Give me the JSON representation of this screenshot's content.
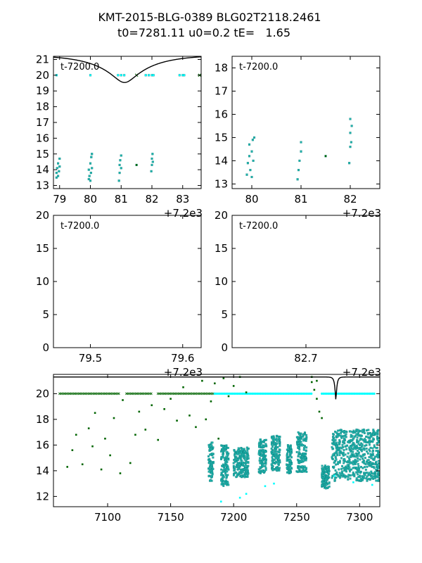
{
  "figure": {
    "title_line1": "KMT-2015-BLG-0389 BLG02T2118.2461",
    "title_line2": "t0=7281.11 u0=0.2 tE=   1.65"
  },
  "colors": {
    "model": "#000000",
    "cyan": "#00ffff",
    "teal": "#20b2aa",
    "green": "#006400"
  },
  "chart_data": [
    {
      "id": "top-left",
      "type": "scatter",
      "annotation": "t-7200.0",
      "offset_label": "+7.2e3",
      "xlim": [
        78.8,
        83.6
      ],
      "ylim": [
        21.2,
        12.8
      ],
      "xticks": [
        79,
        80,
        81,
        82,
        83
      ],
      "yticks": [
        13,
        14,
        15,
        16,
        17,
        18,
        19,
        20,
        21
      ],
      "model": {
        "t0": 81.11,
        "u0": 0.2,
        "tE": 1.65,
        "base_mag": 21.3
      },
      "series": [
        {
          "marker": "dot",
          "color": "teal",
          "points": [
            [
              78.9,
              13.5
            ],
            [
              78.9,
              13.8
            ],
            [
              78.92,
              14.1
            ],
            [
              78.95,
              13.6
            ],
            [
              78.95,
              14.4
            ],
            [
              78.98,
              13.9
            ],
            [
              79.0,
              14.7
            ],
            [
              79.0,
              14.2
            ],
            [
              79.95,
              13.4
            ],
            [
              79.95,
              14.0
            ],
            [
              79.97,
              13.6
            ],
            [
              80.0,
              13.3
            ],
            [
              80.0,
              14.4
            ],
            [
              80.02,
              13.8
            ],
            [
              80.03,
              14.8
            ],
            [
              80.05,
              14.1
            ],
            [
              80.05,
              15.0
            ],
            [
              80.93,
              13.3
            ],
            [
              80.95,
              13.8
            ],
            [
              80.95,
              14.3
            ],
            [
              80.97,
              14.6
            ],
            [
              81.0,
              14.1
            ],
            [
              81.0,
              14.9
            ],
            [
              81.98,
              13.9
            ],
            [
              82.0,
              14.3
            ],
            [
              82.0,
              14.7
            ],
            [
              82.02,
              15.0
            ],
            [
              82.03,
              14.5
            ]
          ]
        },
        {
          "marker": "dot",
          "color": "green",
          "points": [
            [
              81.5,
              14.3
            ]
          ]
        },
        {
          "marker": "dot",
          "color": "cyan",
          "points": [
            [
              78.9,
              20.0
            ],
            [
              80.0,
              20.0
            ],
            [
              80.9,
              20.0
            ],
            [
              81.0,
              20.0
            ],
            [
              81.1,
              20.0
            ],
            [
              81.8,
              20.0
            ],
            [
              81.9,
              20.0
            ],
            [
              82.0,
              20.0
            ],
            [
              82.05,
              20.0
            ],
            [
              82.9,
              20.0
            ],
            [
              83.0,
              20.0
            ],
            [
              83.05,
              20.0
            ]
          ]
        },
        {
          "marker": "x",
          "color": "green",
          "points": [
            [
              81.5,
              20.0
            ],
            [
              83.55,
              20.0
            ]
          ]
        }
      ]
    },
    {
      "id": "top-right",
      "type": "scatter",
      "annotation": "t-7200.0",
      "offset_label": "+7.2e3",
      "xlim": [
        79.6,
        82.6
      ],
      "ylim": [
        18.5,
        12.8
      ],
      "xticks": [
        80,
        81,
        82
      ],
      "yticks": [
        13,
        14,
        15,
        16,
        17,
        18
      ],
      "model": {
        "t0": 81.11,
        "u0": 0.2,
        "tE": 1.65,
        "base_mag": 21.3
      },
      "series": [
        {
          "marker": "dot",
          "color": "teal",
          "points": [
            [
              79.9,
              13.4
            ],
            [
              79.92,
              13.9
            ],
            [
              79.95,
              14.2
            ],
            [
              79.95,
              14.7
            ],
            [
              79.97,
              13.6
            ],
            [
              80.0,
              14.4
            ],
            [
              80.0,
              13.3
            ],
            [
              80.02,
              14.9
            ],
            [
              80.03,
              14.0
            ],
            [
              80.05,
              15.0
            ],
            [
              80.93,
              13.2
            ],
            [
              80.95,
              13.6
            ],
            [
              80.97,
              14.0
            ],
            [
              81.0,
              14.4
            ],
            [
              81.0,
              14.8
            ],
            [
              81.98,
              13.9
            ],
            [
              82.0,
              14.6
            ],
            [
              82.0,
              15.2
            ],
            [
              82.02,
              14.8
            ],
            [
              82.03,
              15.5
            ],
            [
              82.0,
              15.8
            ]
          ]
        },
        {
          "marker": "dot",
          "color": "green",
          "points": [
            [
              81.5,
              14.2
            ]
          ]
        }
      ]
    },
    {
      "id": "middle-left",
      "type": "line",
      "annotation": "t-7200.0",
      "offset_label": "+7.2e3",
      "xlim": [
        79.46,
        79.62
      ],
      "ylim": [
        20,
        0
      ],
      "xticks": [
        79.5,
        79.6
      ],
      "yticks": [
        0,
        5,
        10,
        15,
        20
      ],
      "model": {
        "t0": 81.11,
        "u0": 0.2,
        "tE": 1.65,
        "base_mag": 21.3
      },
      "series": []
    },
    {
      "id": "middle-right",
      "type": "line",
      "annotation": "t-7200.0",
      "offset_label": "+7.2e3",
      "xlim": [
        82.6,
        82.8
      ],
      "ylim": [
        20,
        0
      ],
      "xticks": [
        82.7
      ],
      "yticks": [
        0,
        5,
        10,
        15,
        20
      ],
      "model": {
        "t0": 81.11,
        "u0": 0.2,
        "tE": 1.65,
        "base_mag": 21.3
      },
      "series": []
    },
    {
      "id": "bottom",
      "type": "scatter",
      "annotation": "",
      "offset_label": "",
      "xlim": [
        7057,
        7316
      ],
      "ylim": [
        21.5,
        11.2
      ],
      "xticks": [
        7100,
        7150,
        7200,
        7250,
        7300
      ],
      "yticks": [
        12,
        14,
        16,
        18,
        20
      ],
      "model": {
        "t0": 7281.11,
        "u0": 0.2,
        "tE": 1.65,
        "base_mag": 21.3
      },
      "baseline_bands": [
        {
          "color": "green",
          "marker": "x",
          "y": 20.0,
          "x_from": 7062,
          "x_to": 7110
        },
        {
          "color": "green",
          "marker": "x",
          "y": 20.0,
          "x_from": 7115,
          "x_to": 7135
        },
        {
          "color": "green",
          "marker": "x",
          "y": 20.0,
          "x_from": 7140,
          "x_to": 7185
        },
        {
          "color": "cyan",
          "marker": "dot",
          "y": 20.0,
          "x_from": 7185,
          "x_to": 7262
        },
        {
          "color": "cyan",
          "marker": "dot",
          "y": 20.0,
          "x_from": 7270,
          "x_to": 7312
        }
      ],
      "clusters": [
        {
          "color": "teal",
          "x_from": 7180,
          "x_to": 7184,
          "y_from": 13.2,
          "y_to": 16.2
        },
        {
          "color": "teal",
          "x_from": 7190,
          "x_to": 7196,
          "y_from": 12.8,
          "y_to": 16.0
        },
        {
          "color": "teal",
          "x_from": 7200,
          "x_to": 7212,
          "y_from": 13.5,
          "y_to": 15.8
        },
        {
          "color": "teal",
          "x_from": 7220,
          "x_to": 7226,
          "y_from": 13.8,
          "y_to": 16.5
        },
        {
          "color": "teal",
          "x_from": 7230,
          "x_to": 7237,
          "y_from": 14.0,
          "y_to": 16.8
        },
        {
          "color": "teal",
          "x_from": 7242,
          "x_to": 7246,
          "y_from": 13.8,
          "y_to": 16.0
        },
        {
          "color": "teal",
          "x_from": 7250,
          "x_to": 7258,
          "y_from": 13.9,
          "y_to": 17.0
        },
        {
          "color": "teal",
          "x_from": 7270,
          "x_to": 7276,
          "y_from": 12.6,
          "y_to": 14.4
        },
        {
          "color": "teal",
          "x_from": 7278,
          "x_to": 7316,
          "y_from": 13.2,
          "y_to": 17.2
        }
      ],
      "scatter_points": [
        {
          "color": "green",
          "points": [
            [
              7068,
              14.3
            ],
            [
              7072,
              15.6
            ],
            [
              7075,
              16.8
            ],
            [
              7080,
              14.5
            ],
            [
              7085,
              17.3
            ],
            [
              7088,
              15.9
            ],
            [
              7090,
              18.5
            ],
            [
              7095,
              14.1
            ],
            [
              7098,
              16.5
            ],
            [
              7102,
              15.2
            ],
            [
              7105,
              18.1
            ],
            [
              7110,
              13.8
            ],
            [
              7112,
              19.5
            ],
            [
              7118,
              14.6
            ],
            [
              7122,
              16.8
            ],
            [
              7125,
              18.6
            ],
            [
              7130,
              17.2
            ],
            [
              7135,
              19.1
            ],
            [
              7140,
              16.4
            ],
            [
              7145,
              18.8
            ],
            [
              7150,
              19.6
            ],
            [
              7155,
              17.9
            ],
            [
              7160,
              20.5
            ],
            [
              7165,
              18.3
            ],
            [
              7170,
              17.4
            ],
            [
              7175,
              21.0
            ],
            [
              7178,
              18.0
            ],
            [
              7182,
              19.4
            ],
            [
              7185,
              20.8
            ],
            [
              7188,
              16.5
            ],
            [
              7192,
              21.2
            ],
            [
              7196,
              19.8
            ],
            [
              7200,
              20.6
            ],
            [
              7205,
              21.3
            ],
            [
              7210,
              20.1
            ],
            [
              7262,
              20.9
            ],
            [
              7264,
              20.3
            ],
            [
              7266,
              19.6
            ],
            [
              7268,
              18.6
            ],
            [
              7270,
              18.1
            ],
            [
              7262,
              21.3
            ],
            [
              7266,
              21.0
            ]
          ]
        },
        {
          "color": "cyan",
          "points": [
            [
              7190,
              11.6
            ],
            [
              7205,
              11.9
            ],
            [
              7210,
              12.2
            ],
            [
              7225,
              12.8
            ],
            [
              7232,
              13.0
            ],
            [
              7280,
              13.6
            ],
            [
              7295,
              13.1
            ],
            [
              7310,
              12.9
            ]
          ]
        }
      ]
    }
  ]
}
